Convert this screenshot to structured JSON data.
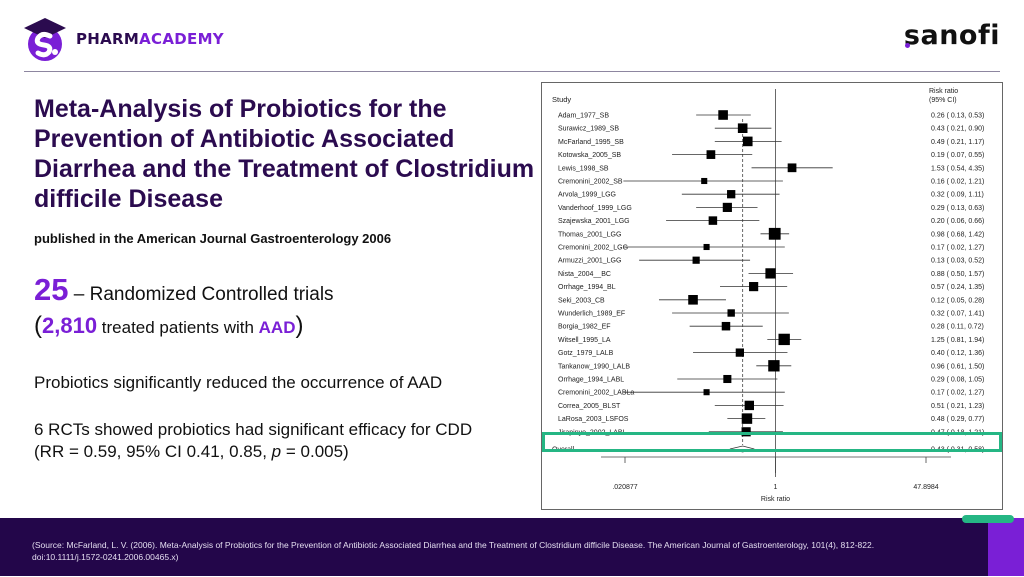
{
  "header": {
    "brand_left_a": "PHARM",
    "brand_left_b": "ACADEMY",
    "brand_right": "sanofi"
  },
  "colors": {
    "primary_dark": "#2b0b4f",
    "accent_purple": "#7a1fd6",
    "highlight_green": "#25b684",
    "footer_bg": "#23064a"
  },
  "slide": {
    "title": "Meta-Analysis of Probiotics for the Prevention of Antibiotic Associated Diarrhea and the Treatment of Clostridium difficile Disease",
    "subtitle": "published in the American Journal Gastroenterology 2006",
    "stat1_number": "25",
    "stat1_text": " – Randomized Controlled trials",
    "stat2_open": "(",
    "stat2_number": "2,810",
    "stat2_text": " treated patients with ",
    "stat2_highlight": "AAD",
    "stat2_close": ")",
    "finding1": "Probiotics significantly reduced the occurrence of AAD",
    "finding2_a": "6 RCTs showed probiotics had significant efficacy for CDD (RR = 0.59, 95% CI 0.41, 0.85, ",
    "finding2_p": "p",
    "finding2_b": " = 0.005)"
  },
  "footer": {
    "source": "(Source: McFarland, L. V. (2006). Meta-Analysis of Probiotics for the Prevention of Antibiotic Associated Diarrhea and the Treatment of Clostridium difficile Disease. The American Journal of Gastroenterology, 101(4), 812-822. doi:10.1111/j.1572-0241.2006.00465.x)"
  },
  "chart_data": {
    "type": "forest",
    "title": "",
    "column_study": "Study",
    "column_effect": [
      "Risk ratio",
      "(95% CI)"
    ],
    "xlabel": "Risk ratio",
    "xscale": "log",
    "xlim": [
      0.020877,
      47.8984
    ],
    "xticks": [
      0.020877,
      1,
      47.8984
    ],
    "xtick_labels": [
      ".020877",
      "1",
      "47.8984"
    ],
    "null_line": 1,
    "studies": [
      {
        "name": "Adam_1977_SB",
        "rr": 0.26,
        "lo": 0.13,
        "hi": 0.53,
        "label": "0.26 ( 0.13, 0.53)",
        "weight": 3
      },
      {
        "name": "Surawicz_1989_SB",
        "rr": 0.43,
        "lo": 0.21,
        "hi": 0.9,
        "label": "0.43 ( 0.21, 0.90)",
        "weight": 3
      },
      {
        "name": "McFarland_1995_SB",
        "rr": 0.49,
        "lo": 0.21,
        "hi": 1.17,
        "label": "0.49 ( 0.21, 1.17)",
        "weight": 3
      },
      {
        "name": "Kotowska_2005_SB",
        "rr": 0.19,
        "lo": 0.07,
        "hi": 0.55,
        "label": "0.19 ( 0.07, 0.55)",
        "weight": 2.6
      },
      {
        "name": "Lewis_1998_SB",
        "rr": 1.53,
        "lo": 0.54,
        "hi": 4.35,
        "label": "1.53 ( 0.54, 4.35)",
        "weight": 2.6
      },
      {
        "name": "Cremonini_2002_SB",
        "rr": 0.16,
        "lo": 0.02,
        "hi": 1.21,
        "label": "0.16 ( 0.02, 1.21)",
        "weight": 1.4
      },
      {
        "name": "Arvola_1999_LGG",
        "rr": 0.32,
        "lo": 0.09,
        "hi": 1.11,
        "label": "0.32 ( 0.09, 1.11)",
        "weight": 2.4
      },
      {
        "name": "Vanderhoof_1999_LGG",
        "rr": 0.29,
        "lo": 0.13,
        "hi": 0.63,
        "label": "0.29 ( 0.13, 0.63)",
        "weight": 2.8
      },
      {
        "name": "Szajewska_2001_LGG",
        "rr": 0.2,
        "lo": 0.06,
        "hi": 0.66,
        "label": "0.20 ( 0.06, 0.66)",
        "weight": 2.5
      },
      {
        "name": "Thomas_2001_LGG",
        "rr": 0.98,
        "lo": 0.68,
        "hi": 1.42,
        "label": "0.98 ( 0.68, 1.42)",
        "weight": 4
      },
      {
        "name": "Cremonini_2002_LGG",
        "rr": 0.17,
        "lo": 0.02,
        "hi": 1.27,
        "label": "0.17 ( 0.02, 1.27)",
        "weight": 1.4
      },
      {
        "name": "Armuzzi_2001_LGG",
        "rr": 0.13,
        "lo": 0.03,
        "hi": 0.52,
        "label": "0.13 ( 0.03, 0.52)",
        "weight": 1.9
      },
      {
        "name": "Nista_2004__BC",
        "rr": 0.88,
        "lo": 0.5,
        "hi": 1.57,
        "label": "0.88 ( 0.50, 1.57)",
        "weight": 3.3
      },
      {
        "name": "Orrhage_1994_BL",
        "rr": 0.57,
        "lo": 0.24,
        "hi": 1.35,
        "label": "0.57 ( 0.24, 1.35)",
        "weight": 2.8
      },
      {
        "name": "Seki_2003_CB",
        "rr": 0.12,
        "lo": 0.05,
        "hi": 0.28,
        "label": "0.12 ( 0.05, 0.28)",
        "weight": 3
      },
      {
        "name": "Wunderlich_1989_EF",
        "rr": 0.32,
        "lo": 0.07,
        "hi": 1.41,
        "label": "0.32 ( 0.07, 1.41)",
        "weight": 2
      },
      {
        "name": "Borgia_1982_EF",
        "rr": 0.28,
        "lo": 0.11,
        "hi": 0.72,
        "label": "0.28 ( 0.11, 0.72)",
        "weight": 2.5
      },
      {
        "name": "Witsell_1995_LA",
        "rr": 1.25,
        "lo": 0.81,
        "hi": 1.94,
        "label": "1.25 ( 0.81, 1.94)",
        "weight": 3.8
      },
      {
        "name": "Gotz_1979_LALB",
        "rr": 0.4,
        "lo": 0.12,
        "hi": 1.36,
        "label": "0.40 ( 0.12, 1.36)",
        "weight": 2.4
      },
      {
        "name": "Tankanow_1990_LALB",
        "rr": 0.96,
        "lo": 0.61,
        "hi": 1.5,
        "label": "0.96 ( 0.61, 1.50)",
        "weight": 3.8
      },
      {
        "name": "Orrhage_1994_LABL",
        "rr": 0.29,
        "lo": 0.08,
        "hi": 1.05,
        "label": "0.29 ( 0.08, 1.05)",
        "weight": 2.3
      },
      {
        "name": "Cremonini_2002_LABLa",
        "rr": 0.17,
        "lo": 0.02,
        "hi": 1.27,
        "label": "0.17 ( 0.02, 1.27)",
        "weight": 1.4
      },
      {
        "name": "Correa_2005_BLST",
        "rr": 0.51,
        "lo": 0.21,
        "hi": 1.23,
        "label": "0.51 ( 0.21, 1.23)",
        "weight": 2.9
      },
      {
        "name": "LaRosa_2003_LSFOS",
        "rr": 0.48,
        "lo": 0.29,
        "hi": 0.77,
        "label": "0.48 ( 0.29, 0.77)",
        "weight": 3.4
      },
      {
        "name": "Jirapinyo_2002_LABI",
        "rr": 0.47,
        "lo": 0.18,
        "hi": 1.21,
        "label": "0.47 ( 0.18, 1.21)",
        "weight": 2.8
      }
    ],
    "overall": {
      "name": "Overall",
      "rr": 0.43,
      "lo": 0.31,
      "hi": 0.58,
      "label": "0.43 ( 0.31, 0.58)"
    }
  }
}
